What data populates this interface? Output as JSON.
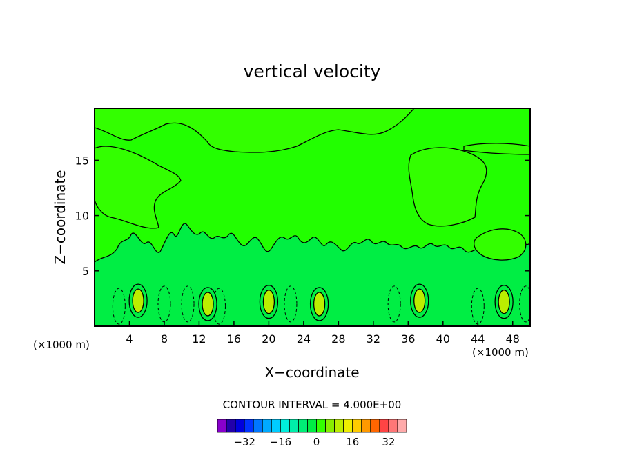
{
  "chart_data": {
    "type": "heatmap",
    "title": "vertical velocity",
    "xlabel": "X−coordinate",
    "ylabel": "Z−coordinate",
    "x_unit_left": "(×1000 m)",
    "x_unit_right": "(×1000 m)",
    "xlim": [
      0,
      50
    ],
    "ylim": [
      0,
      19.7
    ],
    "x_ticks": [
      4,
      8,
      12,
      16,
      20,
      24,
      28,
      32,
      36,
      40,
      44,
      48
    ],
    "y_ticks": [
      5,
      10,
      15
    ],
    "contour_interval_text": "CONTOUR INTERVAL = 4.000E+00",
    "contour_interval": 4,
    "colorbar": {
      "levels": [
        -40,
        -36,
        -32,
        -28,
        -24,
        -20,
        -16,
        -12,
        -8,
        -4,
        0,
        4,
        8,
        12,
        16,
        20,
        24,
        28,
        32,
        36
      ],
      "colors": [
        "#8800cc",
        "#2200aa",
        "#0000dd",
        "#0033ff",
        "#0077ff",
        "#00aaff",
        "#00ccff",
        "#00eedd",
        "#00eeaa",
        "#00ee77",
        "#00ee44",
        "#33ff00",
        "#88ee00",
        "#bbee00",
        "#eeee00",
        "#ffcc00",
        "#ff9900",
        "#ff6600",
        "#ff4444",
        "#ff7777",
        "#ffaaaa"
      ],
      "tick_values": [
        -32,
        -16,
        0,
        16,
        32
      ],
      "tick_labels": [
        "−32",
        "−16",
        "0",
        "16",
        "32"
      ]
    },
    "background_level_color": "#22ff00",
    "updraft_cores": [
      {
        "x": 5.0,
        "z": 2.3,
        "value": 8
      },
      {
        "x": 13.0,
        "z": 2.0,
        "value": 8
      },
      {
        "x": 20.0,
        "z": 2.2,
        "value": 8
      },
      {
        "x": 25.8,
        "z": 2.0,
        "value": 8
      },
      {
        "x": 37.3,
        "z": 2.3,
        "value": 8
      },
      {
        "x": 47.0,
        "z": 2.2,
        "value": 8
      }
    ],
    "downdraft_cores": [
      {
        "x": 2.8,
        "z": 1.8,
        "value": -4
      },
      {
        "x": 8.0,
        "z": 2.0,
        "value": -4
      },
      {
        "x": 10.7,
        "z": 2.0,
        "value": -4
      },
      {
        "x": 14.3,
        "z": 1.8,
        "value": -4
      },
      {
        "x": 22.5,
        "z": 2.0,
        "value": -4
      },
      {
        "x": 34.4,
        "z": 2.0,
        "value": -4
      },
      {
        "x": 44.0,
        "z": 1.8,
        "value": -4
      },
      {
        "x": 49.5,
        "z": 2.0,
        "value": -4
      }
    ],
    "grid": false
  }
}
